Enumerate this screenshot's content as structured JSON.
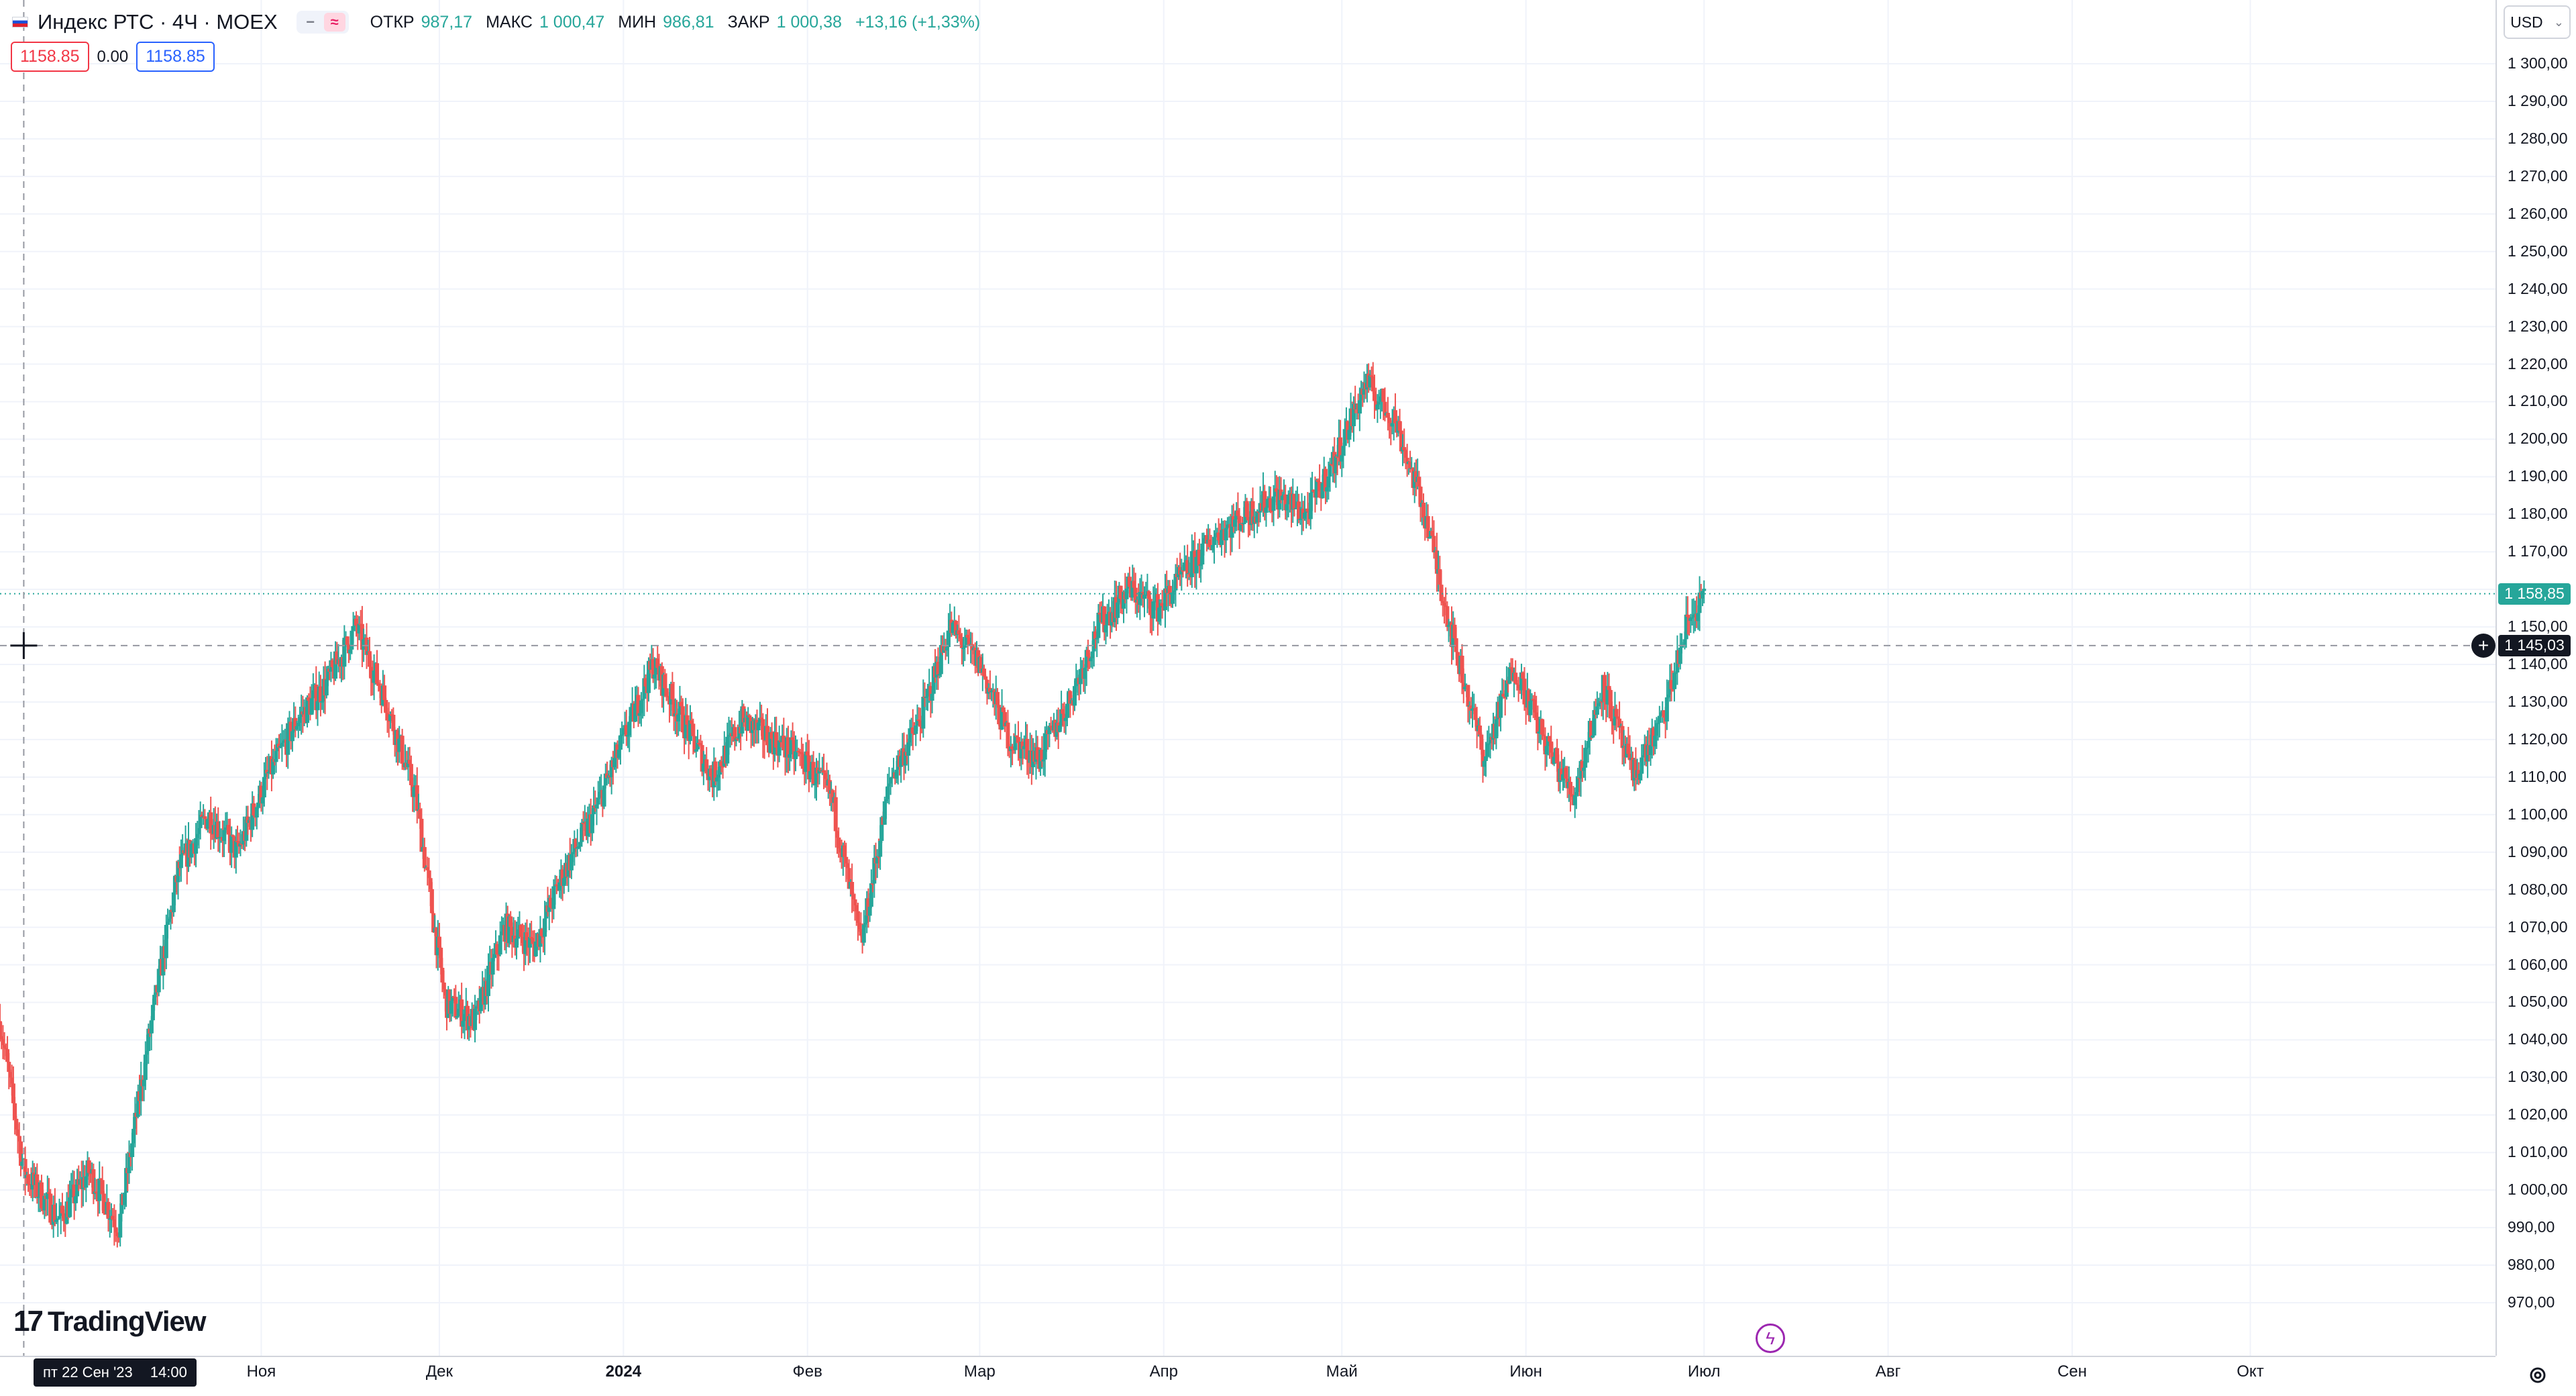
{
  "symbol": {
    "title": "Индекс РТС · 4Ч · MOEX",
    "flag_icon": "russia-flag-icon"
  },
  "legend": {
    "open_label": "ОТКР",
    "open_value": "987,17",
    "high_label": "МАКС",
    "high_value": "1 000,47",
    "low_label": "МИН",
    "low_value": "986,81",
    "close_label": "ЗАКР",
    "close_value": "1 000,38",
    "change_value": "+13,16 (+1,33%)"
  },
  "trade": {
    "sell_price": "1158.85",
    "spread": "0.00",
    "buy_price": "1158.85"
  },
  "price_axis": {
    "currency": "USD",
    "ticks": [
      "1 300,00",
      "1 290,00",
      "1 280,00",
      "1 270,00",
      "1 260,00",
      "1 250,00",
      "1 240,00",
      "1 230,00",
      "1 220,00",
      "1 210,00",
      "1 200,00",
      "1 190,00",
      "1 180,00",
      "1 170,00",
      "1 160,00",
      "1 150,00",
      "1 140,00",
      "1 130,00",
      "1 120,00",
      "1 110,00",
      "1 100,00",
      "1 090,00",
      "1 080,00",
      "1 070,00",
      "1 060,00",
      "1 050,00",
      "1 040,00",
      "1 030,00",
      "1 020,00",
      "1 010,00",
      "1 000,00",
      "990,00",
      "980,00",
      "970,00"
    ],
    "last_price": "1 158,85",
    "cursor_price": "1 145,03"
  },
  "time_axis": {
    "cursor_date": "пт 22 Сен '23",
    "cursor_time": "14:00",
    "months": [
      "Ноя",
      "Дек",
      "2024",
      "Фев",
      "Мар",
      "Апр",
      "Май",
      "Июн",
      "Июл",
      "Авг",
      "Сен",
      "Окт"
    ]
  },
  "brand": {
    "logo_text": "TradingView"
  },
  "colors": {
    "up": "#26a69a",
    "down": "#ef5350",
    "accent": "#2962ff"
  },
  "chart_data": {
    "type": "candlestick",
    "ylim": [
      970,
      1300
    ],
    "x_start": "2023-09-18",
    "x_end": "2024-10-31",
    "x": [
      "2023-09-18",
      "2023-09-22",
      "2023-09-28",
      "2023-10-03",
      "2023-10-08",
      "2023-10-13",
      "2023-10-18",
      "2023-10-23",
      "2023-10-28",
      "2023-11-02",
      "2023-11-07",
      "2023-11-12",
      "2023-11-17",
      "2023-11-22",
      "2023-11-27",
      "2023-12-02",
      "2023-12-07",
      "2023-12-12",
      "2023-12-17",
      "2023-12-22",
      "2023-12-27",
      "2024-01-01",
      "2024-01-06",
      "2024-01-11",
      "2024-01-16",
      "2024-01-21",
      "2024-01-26",
      "2024-01-31",
      "2024-02-05",
      "2024-02-10",
      "2024-02-15",
      "2024-02-20",
      "2024-02-25",
      "2024-03-01",
      "2024-03-06",
      "2024-03-11",
      "2024-03-16",
      "2024-03-21",
      "2024-03-26",
      "2024-03-31",
      "2024-04-05",
      "2024-04-10",
      "2024-04-15",
      "2024-04-20",
      "2024-04-25",
      "2024-04-30",
      "2024-05-05",
      "2024-05-10",
      "2024-05-15",
      "2024-05-20",
      "2024-05-25",
      "2024-05-30",
      "2024-06-04",
      "2024-06-09",
      "2024-06-14",
      "2024-06-19",
      "2024-06-24",
      "2024-06-28",
      "2024-07-01"
    ],
    "values": [
      1045,
      1005,
      992,
      1005,
      990,
      1040,
      1085,
      1100,
      1090,
      1110,
      1125,
      1135,
      1150,
      1130,
      1105,
      1050,
      1045,
      1070,
      1065,
      1085,
      1100,
      1120,
      1140,
      1125,
      1110,
      1125,
      1120,
      1115,
      1105,
      1065,
      1110,
      1125,
      1150,
      1140,
      1120,
      1115,
      1130,
      1150,
      1160,
      1155,
      1165,
      1175,
      1180,
      1185,
      1180,
      1195,
      1215,
      1205,
      1180,
      1145,
      1115,
      1140,
      1120,
      1105,
      1135,
      1110,
      1125,
      1150,
      1158.85
    ],
    "series": [
      {
        "name": "Индекс РТС",
        "last": 1158.85
      }
    ]
  }
}
